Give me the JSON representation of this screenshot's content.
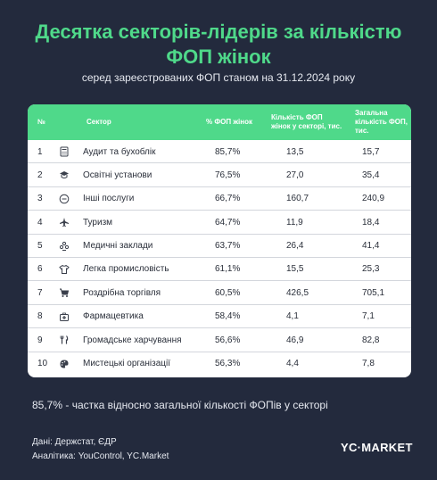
{
  "title_line1": "Десятка секторів-лідерів за кількістю",
  "title_line2": "ФОП жінок",
  "subtitle": "серед зареєстрованих ФОП станом на 31.12.2024 року",
  "table": {
    "headers": {
      "num": "№",
      "sector": "Сектор",
      "pct": "% ФОП жінок",
      "women": "Кількість ФОП жінок у секторі, тис.",
      "total": "Загальна кількість ФОП, тис."
    },
    "rows": [
      {
        "num": "1",
        "icon": "calculator-icon",
        "sector": "Аудит та бухоблік",
        "pct": "85,7%",
        "women": "13,5",
        "total": "15,7"
      },
      {
        "num": "2",
        "icon": "graduation-cap-icon",
        "sector": "Освітні установи",
        "pct": "76,5%",
        "women": "27,0",
        "total": "35,4"
      },
      {
        "num": "3",
        "icon": "ellipsis-circle-icon",
        "sector": "Інші послуги",
        "pct": "66,7%",
        "women": "160,7",
        "total": "240,9"
      },
      {
        "num": "4",
        "icon": "airplane-icon",
        "sector": "Туризм",
        "pct": "64,7%",
        "women": "11,9",
        "total": "18,4"
      },
      {
        "num": "5",
        "icon": "medical-icon",
        "sector": "Медичні заклади",
        "pct": "63,7%",
        "women": "26,4",
        "total": "41,4"
      },
      {
        "num": "6",
        "icon": "tshirt-icon",
        "sector": "Легка промисловість",
        "pct": "61,1%",
        "women": "15,5",
        "total": "25,3"
      },
      {
        "num": "7",
        "icon": "cart-icon",
        "sector": "Роздрібна торгівля",
        "pct": "60,5%",
        "women": "426,5",
        "total": "705,1"
      },
      {
        "num": "8",
        "icon": "first-aid-kit-icon",
        "sector": "Фармацевтика",
        "pct": "58,4%",
        "women": "4,1",
        "total": "7,1"
      },
      {
        "num": "9",
        "icon": "fork-knife-icon",
        "sector": "Громадське харчування",
        "pct": "56,6%",
        "women": "46,9",
        "total": "82,8"
      },
      {
        "num": "10",
        "icon": "palette-icon",
        "sector": "Мистецькі організації",
        "pct": "56,3%",
        "women": "4,4",
        "total": "7,8"
      }
    ]
  },
  "note": "85,7% - частка відносно загальної кількості ФОПів у секторі",
  "sources": {
    "data": "Дані: Держстат, ЄДР",
    "analytics": "Аналітика: YouControl, YC.Market"
  },
  "logo": "YC·MARKET",
  "colors": {
    "accent": "#4fd98a",
    "background": "#232a3d",
    "card": "#ffffff"
  }
}
